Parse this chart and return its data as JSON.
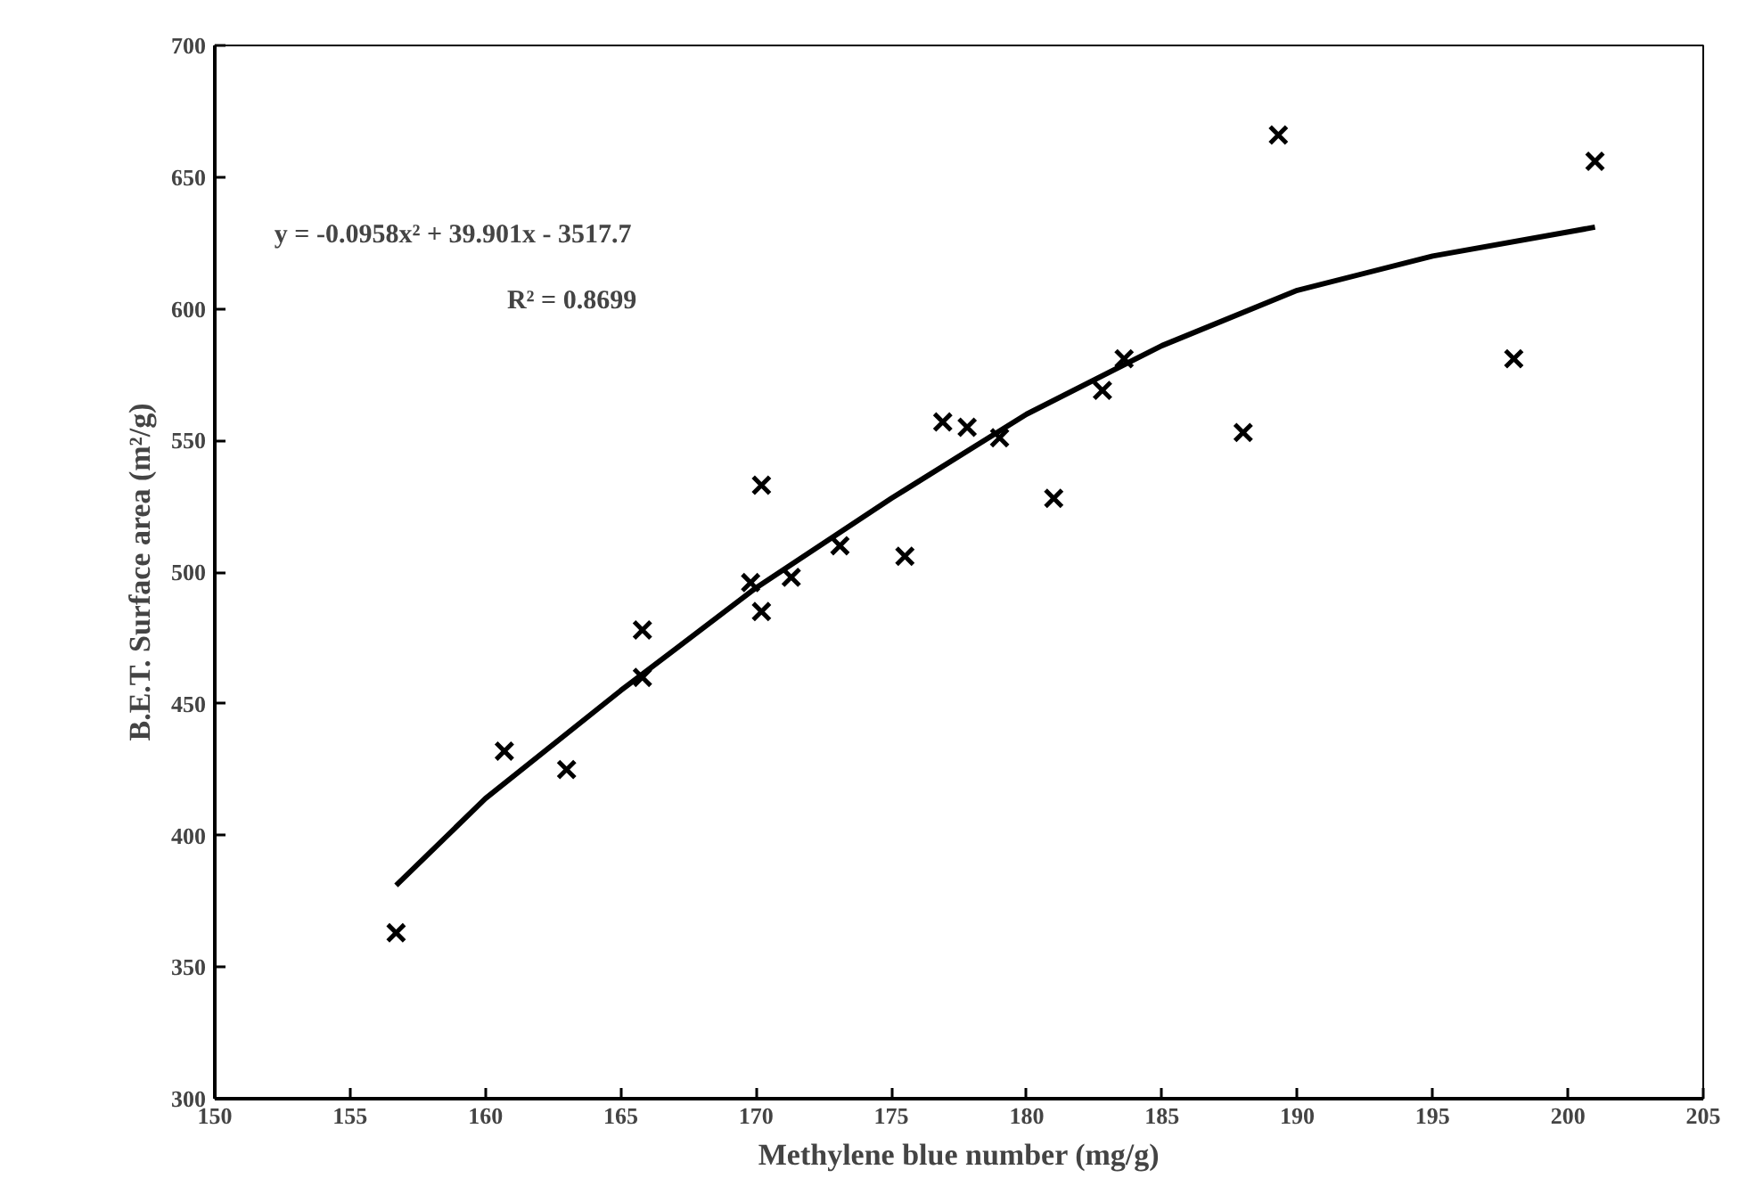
{
  "chart_data": {
    "type": "scatter",
    "xlabel": "Methylene blue number (mg/g)",
    "ylabel": "B.E.T. Surface area (m²/g)",
    "xlim": [
      150,
      205
    ],
    "xticks": [
      150,
      155,
      160,
      165,
      170,
      175,
      180,
      185,
      190,
      195,
      200,
      205
    ],
    "ylim": [
      300,
      700
    ],
    "yticks": [
      300,
      350,
      400,
      450,
      500,
      550,
      600,
      650,
      700
    ],
    "grid": false,
    "annotations": [
      "y = -0.0958x² + 39.901x - 3517.7",
      "R² = 0.8699"
    ],
    "series": [
      {
        "marker": "cross",
        "color": "#000000",
        "x": [
          156.7,
          160.7,
          163.0,
          165.8,
          165.8,
          169.8,
          170.2,
          170.2,
          171.3,
          173.1,
          175.5,
          176.9,
          177.8,
          179.0,
          181.0,
          182.8,
          183.6,
          188.0,
          189.3,
          198.0,
          201.0
        ],
        "values": [
          363,
          432,
          425,
          478,
          460,
          496,
          485,
          533,
          498,
          510,
          506,
          557,
          555,
          551,
          528,
          569,
          581,
          553,
          666,
          581,
          656
        ]
      },
      {
        "type": "line",
        "marker": "none",
        "line_style": "solid",
        "color": "#000000",
        "x": [
          156.7,
          160,
          165,
          170,
          175,
          180,
          185,
          190,
          195,
          201
        ],
        "values": [
          381,
          414,
          455,
          494,
          528,
          560,
          586,
          607,
          620,
          631
        ]
      }
    ]
  }
}
